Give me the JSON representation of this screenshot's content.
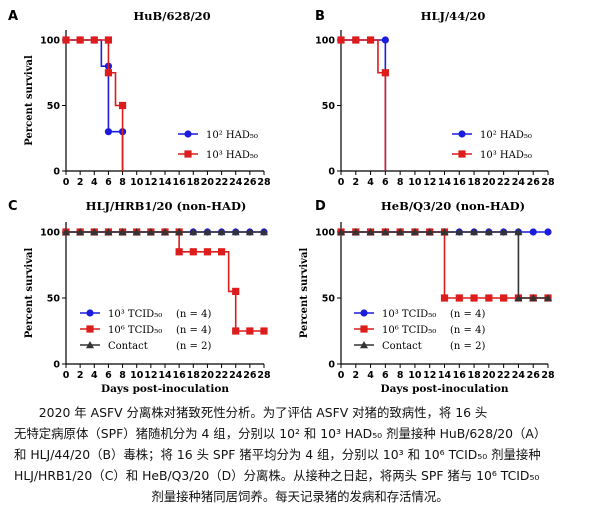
{
  "chart_data": [
    {
      "type": "line",
      "label": "A",
      "title": "HuB/628/20",
      "ylabel": "Percent survival",
      "xlabel": "",
      "xlim": [
        0,
        28
      ],
      "ylim": [
        0,
        100
      ],
      "xticks": [
        0,
        2,
        4,
        6,
        8,
        10,
        12,
        14,
        16,
        18,
        20,
        22,
        24,
        26,
        28
      ],
      "yticks": [
        0,
        50,
        100
      ],
      "legend_position": "lower-right",
      "series": [
        {
          "name": "10² HAD₅₀",
          "color": "#1c1cdc",
          "marker": "circle",
          "points": [
            [
              0,
              100
            ],
            [
              2,
              100
            ],
            [
              4,
              100
            ],
            [
              5,
              100
            ],
            [
              5,
              80
            ],
            [
              6,
              80
            ],
            [
              6,
              30
            ],
            [
              8,
              30
            ],
            [
              8,
              0
            ]
          ]
        },
        {
          "name": "10³ HAD₅₀",
          "color": "#dd1c1c",
          "marker": "square",
          "points": [
            [
              0,
              100
            ],
            [
              2,
              100
            ],
            [
              4,
              100
            ],
            [
              6,
              100
            ],
            [
              6,
              75
            ],
            [
              7,
              75
            ],
            [
              7,
              50
            ],
            [
              8,
              50
            ],
            [
              8,
              0
            ]
          ]
        }
      ]
    },
    {
      "type": "line",
      "label": "B",
      "title": "HLJ/44/20",
      "ylabel": "",
      "xlabel": "",
      "xlim": [
        0,
        28
      ],
      "ylim": [
        0,
        100
      ],
      "xticks": [
        0,
        2,
        4,
        6,
        8,
        10,
        12,
        14,
        16,
        18,
        20,
        22,
        24,
        26,
        28
      ],
      "yticks": [
        0,
        50,
        100
      ],
      "legend_position": "lower-right",
      "series": [
        {
          "name": "10² HAD₅₀",
          "color": "#1c1cdc",
          "marker": "circle",
          "points": [
            [
              0,
              100
            ],
            [
              2,
              100
            ],
            [
              4,
              100
            ],
            [
              6,
              100
            ],
            [
              6,
              0
            ]
          ]
        },
        {
          "name": "10³ HAD₅₀",
          "color": "#dd1c1c",
          "marker": "square",
          "points": [
            [
              0,
              100
            ],
            [
              2,
              100
            ],
            [
              4,
              100
            ],
            [
              5,
              100
            ],
            [
              5,
              75
            ],
            [
              6,
              75
            ],
            [
              6,
              0
            ]
          ]
        }
      ]
    },
    {
      "type": "line",
      "label": "C",
      "title": "HLJ/HRB1/20 (non-HAD)",
      "ylabel": "Percent survival",
      "xlabel": "Days post-inoculation",
      "xlim": [
        0,
        28
      ],
      "ylim": [
        0,
        100
      ],
      "xticks": [
        0,
        2,
        4,
        6,
        8,
        10,
        12,
        14,
        16,
        18,
        20,
        22,
        24,
        26,
        28
      ],
      "yticks": [
        0,
        50,
        100
      ],
      "legend_position": "lower-left",
      "series": [
        {
          "name": "10³ TCID₅₀",
          "note": "(n = 4)",
          "color": "#1c1cdc",
          "marker": "circle",
          "points": [
            [
              0,
              100
            ],
            [
              2,
              100
            ],
            [
              4,
              100
            ],
            [
              6,
              100
            ],
            [
              8,
              100
            ],
            [
              10,
              100
            ],
            [
              12,
              100
            ],
            [
              14,
              100
            ],
            [
              16,
              100
            ],
            [
              18,
              100
            ],
            [
              20,
              100
            ],
            [
              22,
              100
            ],
            [
              24,
              100
            ],
            [
              26,
              100
            ],
            [
              28,
              100
            ]
          ]
        },
        {
          "name": "10⁶ TCID₅₀",
          "note": "(n = 4)",
          "color": "#dd1c1c",
          "marker": "square",
          "points": [
            [
              0,
              100
            ],
            [
              2,
              100
            ],
            [
              4,
              100
            ],
            [
              6,
              100
            ],
            [
              8,
              100
            ],
            [
              10,
              100
            ],
            [
              12,
              100
            ],
            [
              14,
              100
            ],
            [
              16,
              100
            ],
            [
              16,
              85
            ],
            [
              18,
              85
            ],
            [
              20,
              85
            ],
            [
              22,
              85
            ],
            [
              23,
              85
            ],
            [
              23,
              55
            ],
            [
              24,
              55
            ],
            [
              24,
              25
            ],
            [
              26,
              25
            ],
            [
              28,
              25
            ]
          ]
        },
        {
          "name": "Contact",
          "note": "(n = 2)",
          "color": "#333333",
          "marker": "triangle",
          "points": [
            [
              0,
              100
            ],
            [
              2,
              100
            ],
            [
              4,
              100
            ],
            [
              6,
              100
            ],
            [
              8,
              100
            ],
            [
              10,
              100
            ],
            [
              12,
              100
            ],
            [
              14,
              100
            ],
            [
              16,
              100
            ],
            [
              18,
              100
            ],
            [
              20,
              100
            ],
            [
              22,
              100
            ],
            [
              24,
              100
            ],
            [
              26,
              100
            ],
            [
              28,
              100
            ]
          ]
        }
      ]
    },
    {
      "type": "line",
      "label": "D",
      "title": "HeB/Q3/20 (non-HAD)",
      "ylabel": "Percent survival",
      "xlabel": "Days post-inoculation",
      "xlim": [
        0,
        28
      ],
      "ylim": [
        0,
        100
      ],
      "xticks": [
        0,
        2,
        4,
        6,
        8,
        10,
        12,
        14,
        16,
        18,
        20,
        22,
        24,
        26,
        28
      ],
      "yticks": [
        0,
        50,
        100
      ],
      "legend_position": "lower-left",
      "series": [
        {
          "name": "10³ TCID₅₀",
          "note": "(n = 4)",
          "color": "#1c1cdc",
          "marker": "circle",
          "points": [
            [
              0,
              100
            ],
            [
              2,
              100
            ],
            [
              4,
              100
            ],
            [
              6,
              100
            ],
            [
              8,
              100
            ],
            [
              10,
              100
            ],
            [
              12,
              100
            ],
            [
              14,
              100
            ],
            [
              16,
              100
            ],
            [
              18,
              100
            ],
            [
              20,
              100
            ],
            [
              22,
              100
            ],
            [
              24,
              100
            ],
            [
              26,
              100
            ],
            [
              28,
              100
            ]
          ]
        },
        {
          "name": "10⁶ TCID₅₀",
          "note": "(n = 4)",
          "color": "#dd1c1c",
          "marker": "square",
          "points": [
            [
              0,
              100
            ],
            [
              2,
              100
            ],
            [
              4,
              100
            ],
            [
              6,
              100
            ],
            [
              8,
              100
            ],
            [
              10,
              100
            ],
            [
              12,
              100
            ],
            [
              14,
              100
            ],
            [
              14,
              50
            ],
            [
              16,
              50
            ],
            [
              18,
              50
            ],
            [
              20,
              50
            ],
            [
              22,
              50
            ],
            [
              24,
              50
            ],
            [
              26,
              50
            ],
            [
              28,
              50
            ]
          ]
        },
        {
          "name": "Contact",
          "note": "(n = 2)",
          "color": "#333333",
          "marker": "triangle",
          "points": [
            [
              0,
              100
            ],
            [
              2,
              100
            ],
            [
              4,
              100
            ],
            [
              6,
              100
            ],
            [
              8,
              100
            ],
            [
              10,
              100
            ],
            [
              12,
              100
            ],
            [
              14,
              100
            ],
            [
              16,
              100
            ],
            [
              18,
              100
            ],
            [
              20,
              100
            ],
            [
              22,
              100
            ],
            [
              24,
              100
            ],
            [
              24,
              50
            ],
            [
              26,
              50
            ],
            [
              28,
              50
            ]
          ]
        }
      ]
    }
  ],
  "caption": {
    "line1": "2020 年 ASFV 分离株对猪致死性分析。为了评估 ASFV 对猪的致病性，将 16 头",
    "line2": "无特定病原体（SPF）猪随机分为 4 组，分别以 10² 和 10³ HAD₅₀ 剂量接种 HuB/628/20（A）",
    "line3": "和 HLJ/44/20（B）毒株；将 16 头 SPF 猪平均分为 4 组，分别以 10³ 和 10⁶ TCID₅₀ 剂量接种",
    "line4": "HLJ/HRB1/20（C）和 HeB/Q3/20（D）分离株。从接种之日起，将两头 SPF 猪与 10⁶ TCID₅₀",
    "line5": "剂量接种猪同居饲养。每天记录猪的发病和存活情况。"
  }
}
